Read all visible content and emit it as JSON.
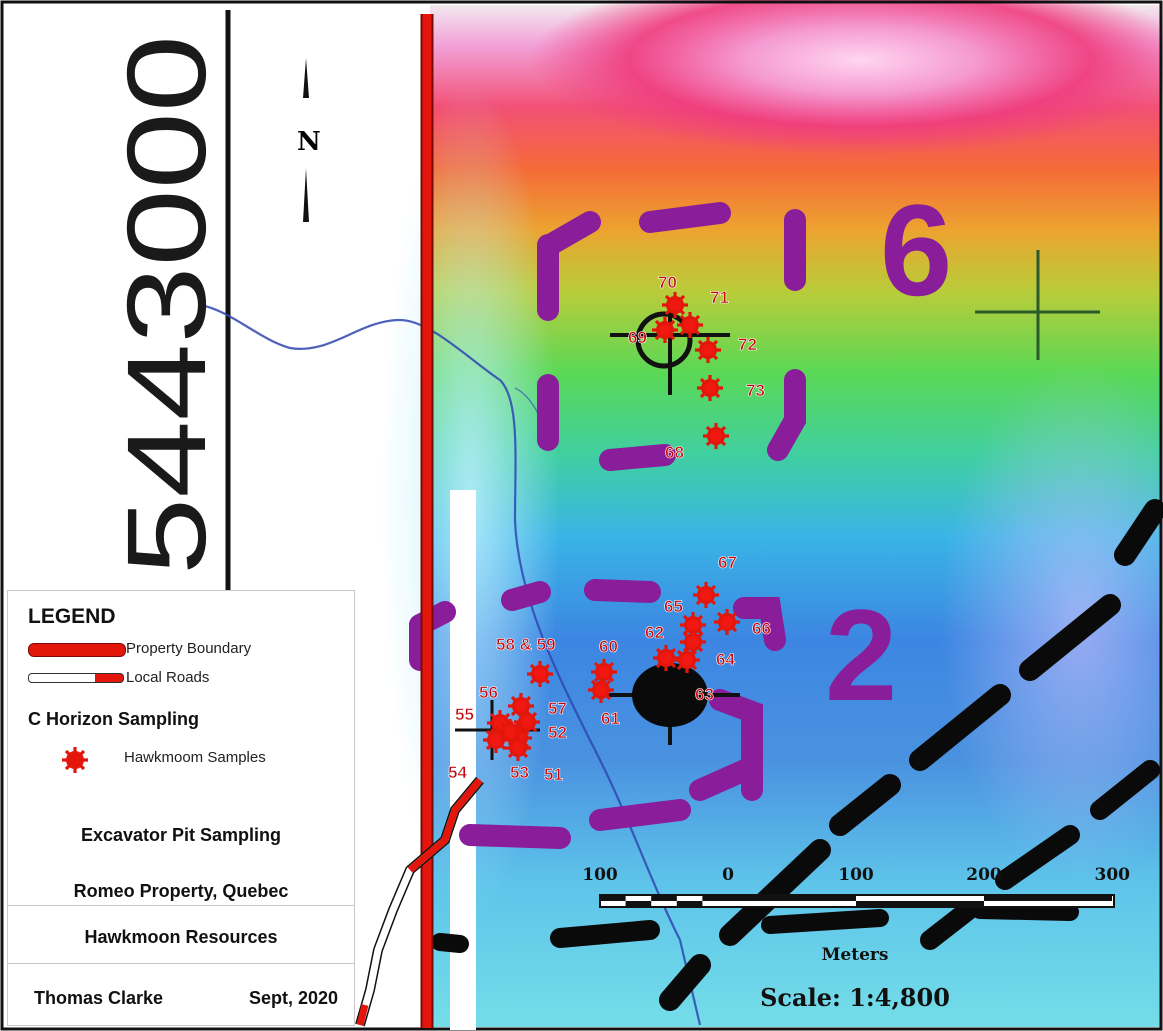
{
  "map": {
    "coordinate_label": "5443000",
    "north_label": "N",
    "zone_labels": [
      {
        "id": "zone-6",
        "text": "6"
      },
      {
        "id": "zone-2",
        "text": "2"
      }
    ],
    "samples": [
      {
        "id": "70",
        "label": "70"
      },
      {
        "id": "71",
        "label": "71"
      },
      {
        "id": "69",
        "label": "69"
      },
      {
        "id": "72",
        "label": "72"
      },
      {
        "id": "73",
        "label": "73"
      },
      {
        "id": "68",
        "label": "68"
      },
      {
        "id": "67",
        "label": "67"
      },
      {
        "id": "65",
        "label": "65"
      },
      {
        "id": "66",
        "label": "66"
      },
      {
        "id": "62",
        "label": "62"
      },
      {
        "id": "64",
        "label": "64"
      },
      {
        "id": "63",
        "label": "63"
      },
      {
        "id": "60",
        "label": "60"
      },
      {
        "id": "61",
        "label": "61"
      },
      {
        "id": "58-59",
        "label": "58 & 59"
      },
      {
        "id": "56",
        "label": "56"
      },
      {
        "id": "57",
        "label": "57"
      },
      {
        "id": "55",
        "label": "55"
      },
      {
        "id": "52",
        "label": "52"
      },
      {
        "id": "54",
        "label": "54"
      },
      {
        "id": "53",
        "label": "53"
      },
      {
        "id": "51",
        "label": "51"
      }
    ],
    "scale_bar": {
      "ticks": [
        "100",
        "0",
        "100",
        "200",
        "300"
      ],
      "unit_label": "Meters",
      "scale_text": "Scale: 1:4,800"
    }
  },
  "legend": {
    "title": "LEGEND",
    "property_boundary": "Property Boundary",
    "local_roads": "Local Roads",
    "sampling_heading": "C Horizon Sampling",
    "samples_label": "Hawkmoom Samples",
    "project_title": "Excavator Pit Sampling",
    "property_name": "Romeo Property, Quebec",
    "company": "Hawkmoon Resources",
    "author": "Thomas Clarke",
    "date": "Sept, 2020"
  },
  "colors": {
    "boundary": "#e3160c",
    "sample_fill": "#e3160c",
    "label": "#c4060a",
    "zone_outline": "#8a1d9a"
  }
}
